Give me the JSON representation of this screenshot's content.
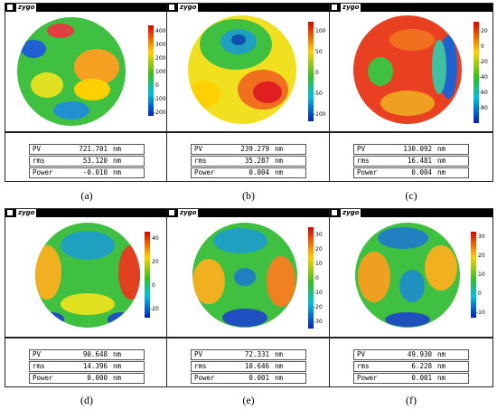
{
  "app_label": "zygo",
  "panels": [
    {
      "caption": "(a)",
      "scale_ticks": [
        "400",
        "300",
        "200",
        "100",
        "0",
        "-100",
        "-200"
      ],
      "stats": [
        {
          "label": "PV",
          "value": "721.701",
          "unit": "nm"
        },
        {
          "label": "rms",
          "value": "53.120",
          "unit": "nm"
        },
        {
          "label": "Power",
          "value": "-0.010",
          "unit": "nm"
        }
      ]
    },
    {
      "caption": "(b)",
      "scale_ticks": [
        "100",
        "50",
        "0",
        "-50",
        "-100"
      ],
      "stats": [
        {
          "label": "PV",
          "value": "239.279",
          "unit": "nm"
        },
        {
          "label": "rms",
          "value": "35.287",
          "unit": "nm"
        },
        {
          "label": "Power",
          "value": "0.004",
          "unit": "nm"
        }
      ]
    },
    {
      "caption": "(c)",
      "scale_ticks": [
        "20",
        "0",
        "-20",
        "-40",
        "-60",
        "-80"
      ],
      "stats": [
        {
          "label": "PV",
          "value": "130.092",
          "unit": "nm"
        },
        {
          "label": "rms",
          "value": "16.481",
          "unit": "nm"
        },
        {
          "label": "Power",
          "value": "0.004",
          "unit": "nm"
        }
      ]
    },
    {
      "caption": "(d)",
      "scale_ticks": [
        "40",
        "20",
        "0",
        "-20"
      ],
      "stats": [
        {
          "label": "PV",
          "value": "90.648",
          "unit": "nm"
        },
        {
          "label": "rms",
          "value": "14.396",
          "unit": "nm"
        },
        {
          "label": "Power",
          "value": "0.000",
          "unit": "nm"
        }
      ]
    },
    {
      "caption": "(e)",
      "scale_ticks": [
        "30",
        "20",
        "10",
        "0",
        "-10",
        "-20",
        "-30"
      ],
      "stats": [
        {
          "label": "PV",
          "value": "72.331",
          "unit": "nm"
        },
        {
          "label": "rms",
          "value": "10.646",
          "unit": "nm"
        },
        {
          "label": "Power",
          "value": "0.001",
          "unit": "nm"
        }
      ]
    },
    {
      "caption": "(f)",
      "scale_ticks": [
        "30",
        "20",
        "10",
        "0",
        "-10"
      ],
      "stats": [
        {
          "label": "PV",
          "value": "49.930",
          "unit": "nm"
        },
        {
          "label": "rms",
          "value": "6.228",
          "unit": "nm"
        },
        {
          "label": "Power",
          "value": "0.001",
          "unit": "nm"
        }
      ]
    }
  ],
  "colors": {
    "high": "#e00000",
    "mid_high": "#ffd000",
    "mid": "#30c020",
    "low": "#0020c0"
  }
}
